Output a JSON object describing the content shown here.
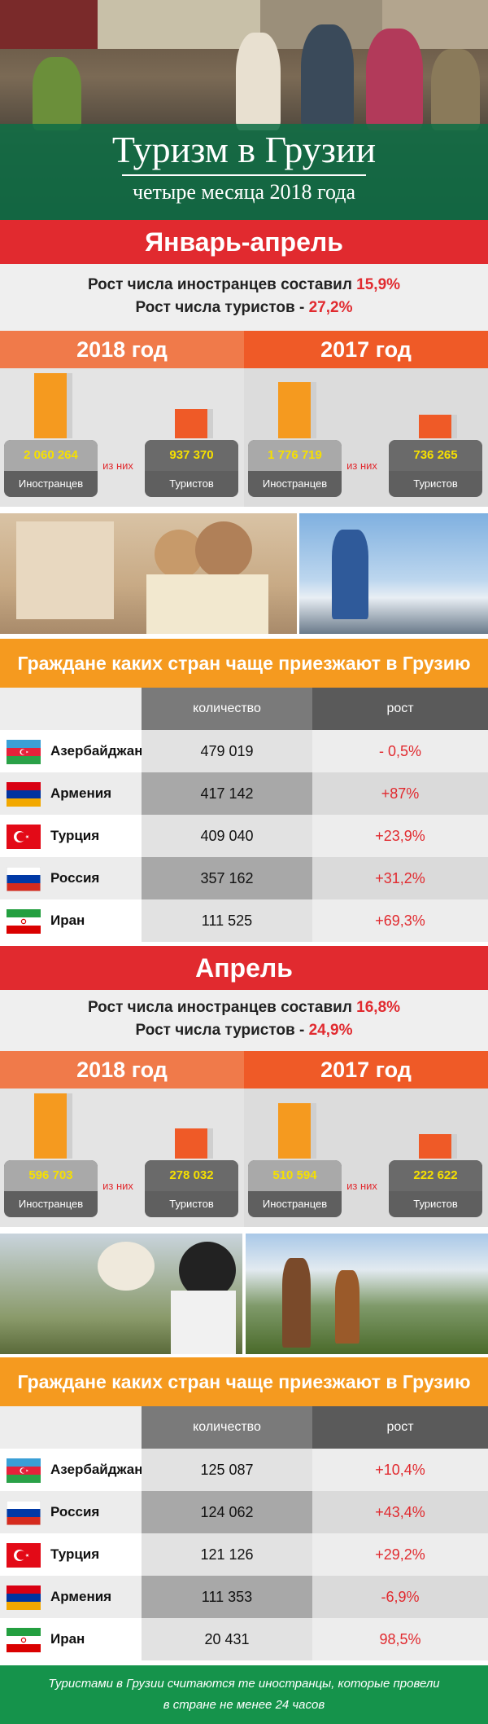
{
  "hero": {
    "title": "Туризм в Грузии",
    "subtitle": "четыре месяца 2018 года"
  },
  "colors": {
    "red": "#e12a2f",
    "orange": "#f59a1f",
    "green": "#15934b",
    "year2018": "#f07a4a",
    "year2017": "#ef5a27"
  },
  "sections": [
    {
      "title": "Январь-апрель",
      "growth_line1": "Рост числа иностранцев составил ",
      "growth_val1": "15,9%",
      "growth_line2": "Рост числа туристов - ",
      "growth_val2": "27,2%",
      "years": [
        {
          "label": "2018 год",
          "foreigners": "2 060 264",
          "foreigners_label": "Иностранцев",
          "of_which": "из них",
          "tourists": "937 370",
          "tourists_label": "Туристов",
          "foreigners_value": 2060264,
          "tourists_value": 937370
        },
        {
          "label": "2017 год",
          "foreigners": "1 776 719",
          "foreigners_label": "Иностранцев",
          "of_which": "из них",
          "tourists": "736 265",
          "tourists_label": "Туристов",
          "foreigners_value": 1776719,
          "tourists_value": 736265
        }
      ],
      "table_title": "Граждане каких стран чаще приезжают в Грузию",
      "col_qty": "количество",
      "col_growth": "рост",
      "rows": [
        {
          "country": "Азербайджан",
          "flag": "azerbaijan-flag",
          "qty": "479 019",
          "growth": "- 0,5%"
        },
        {
          "country": "Армения",
          "flag": "armenia-flag",
          "qty": "417 142",
          "growth": "+87%"
        },
        {
          "country": "Турция",
          "flag": "turkey-flag",
          "qty": "409 040",
          "growth": "+23,9%"
        },
        {
          "country": "Россия",
          "flag": "russia-flag",
          "qty": "357 162",
          "growth": "+31,2%"
        },
        {
          "country": "Иран",
          "flag": "iran-flag",
          "qty": "111 525",
          "growth": "+69,3%"
        }
      ]
    },
    {
      "title": "Апрель",
      "growth_line1": "Рост числа иностранцев составил ",
      "growth_val1": "16,8%",
      "growth_line2": "Рост числа туристов - ",
      "growth_val2": "24,9%",
      "years": [
        {
          "label": "2018 год",
          "foreigners": "596 703",
          "foreigners_label": "Иностранцев",
          "of_which": "из них",
          "tourists": "278 032",
          "tourists_label": "Туристов",
          "foreigners_value": 596703,
          "tourists_value": 278032
        },
        {
          "label": "2017 год",
          "foreigners": "510 594",
          "foreigners_label": "Иностранцев",
          "of_which": "из них",
          "tourists": "222 622",
          "tourists_label": "Туристов",
          "foreigners_value": 510594,
          "tourists_value": 222622
        }
      ],
      "table_title": "Граждане каких стран чаще приезжают в Грузию",
      "col_qty": "количество",
      "col_growth": "рост",
      "rows": [
        {
          "country": "Азербайджан",
          "flag": "azerbaijan-flag",
          "qty": "125 087",
          "growth": "+10,4%"
        },
        {
          "country": "Россия",
          "flag": "russia-flag",
          "qty": "124 062",
          "growth": "+43,4%"
        },
        {
          "country": "Турция",
          "flag": "turkey-flag",
          "qty": "121 126",
          "growth": "+29,2%"
        },
        {
          "country": "Армения",
          "flag": "armenia-flag",
          "qty": "111 353",
          "growth": "-6,9%"
        },
        {
          "country": "Иран",
          "flag": "iran-flag",
          "qty": "20 431",
          "growth": "98,5%"
        }
      ]
    }
  ],
  "footer": {
    "line1": "Туристами в Грузии считаются те иностранцы, которые провели",
    "line2": "в стране не менее 24 часов"
  }
}
